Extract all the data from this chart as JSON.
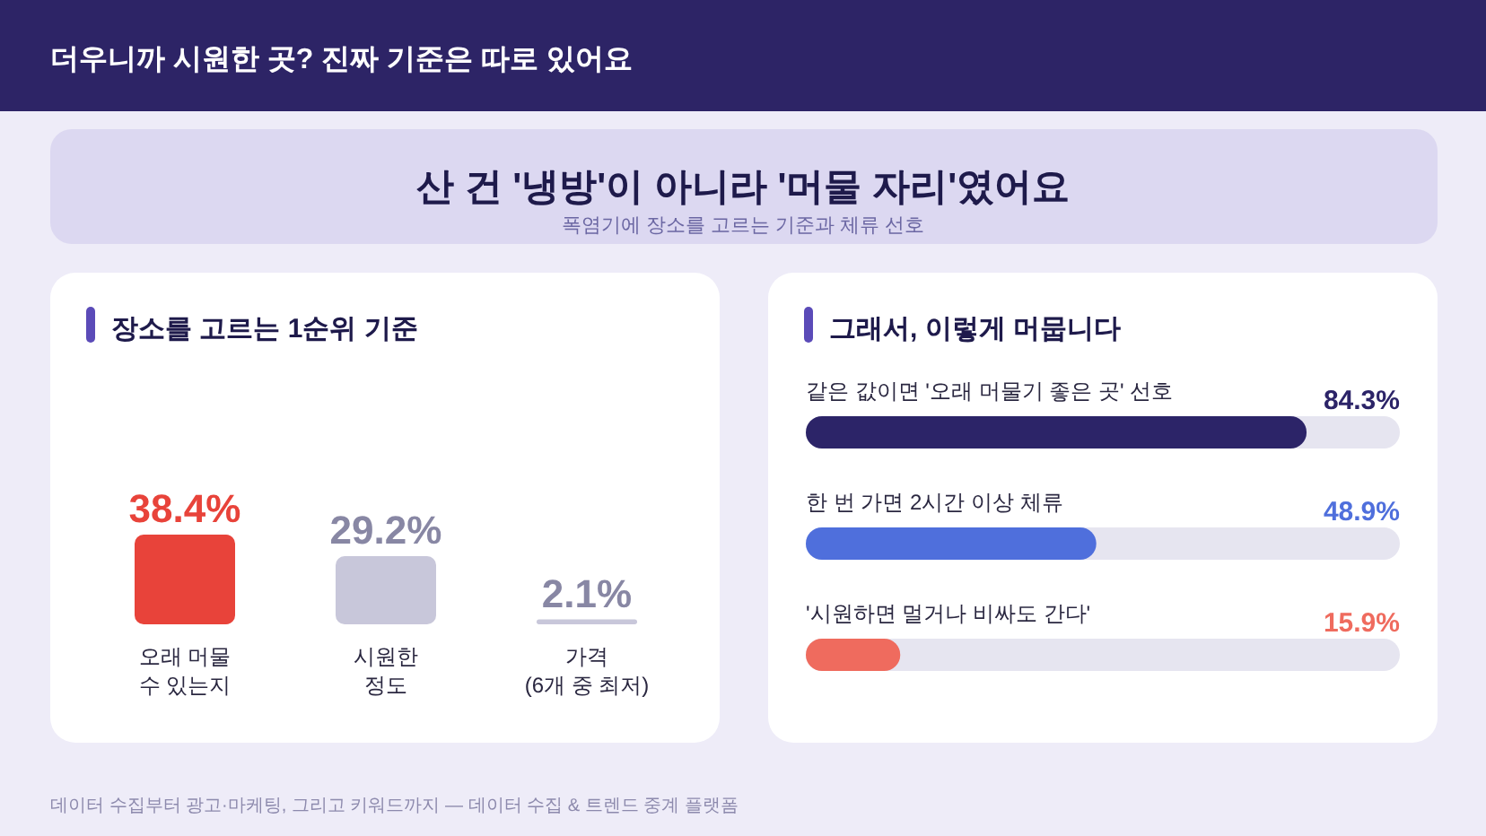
{
  "chart_data": [
    {
      "type": "other",
      "title": "산 건 '냉방'이 아니라 '머물 자리'였어요",
      "subtitle": "폭염기에 장소를 고르는 기준과 체류 선호",
      "annotations": [
        "더우니까 시원한 곳? 진짜 기준은 따로 있어요",
        "데이터 수집부터 광고·마케팅, 그리고 키워드까지 — 데이터 수집 & 트렌드 중계 플랫폼"
      ]
    },
    {
      "type": "bar",
      "title": "장소를 고르는 1순위 기준",
      "categories": [
        "오래 머물\n수 있는지",
        "시원한\n정도",
        "가격\n(6개 중 최저)"
      ],
      "values": [
        38.4,
        29.2,
        2.1
      ],
      "colors": [
        "#e8433a",
        "#c8c7da",
        "#c8c7da"
      ],
      "value_labels": [
        "38.4%",
        "29.2%",
        "2.1%"
      ]
    },
    {
      "type": "bar",
      "orientation": "horizontal",
      "title": "그래서, 이렇게 머뭅니다",
      "categories": [
        "같은 값이면 '오래 머물기 좋은 곳' 선호",
        "한 번 가면 2시간 이상 체류",
        "'시원하면 멀거나 비싸도 간다'"
      ],
      "values": [
        84.3,
        48.9,
        15.9
      ],
      "colors": [
        "#2c2468",
        "#4f6fdc",
        "#ef6b5e"
      ],
      "xlim": [
        0,
        100
      ],
      "value_labels": [
        "84.3%",
        "48.9%",
        "15.9%"
      ]
    }
  ]
}
